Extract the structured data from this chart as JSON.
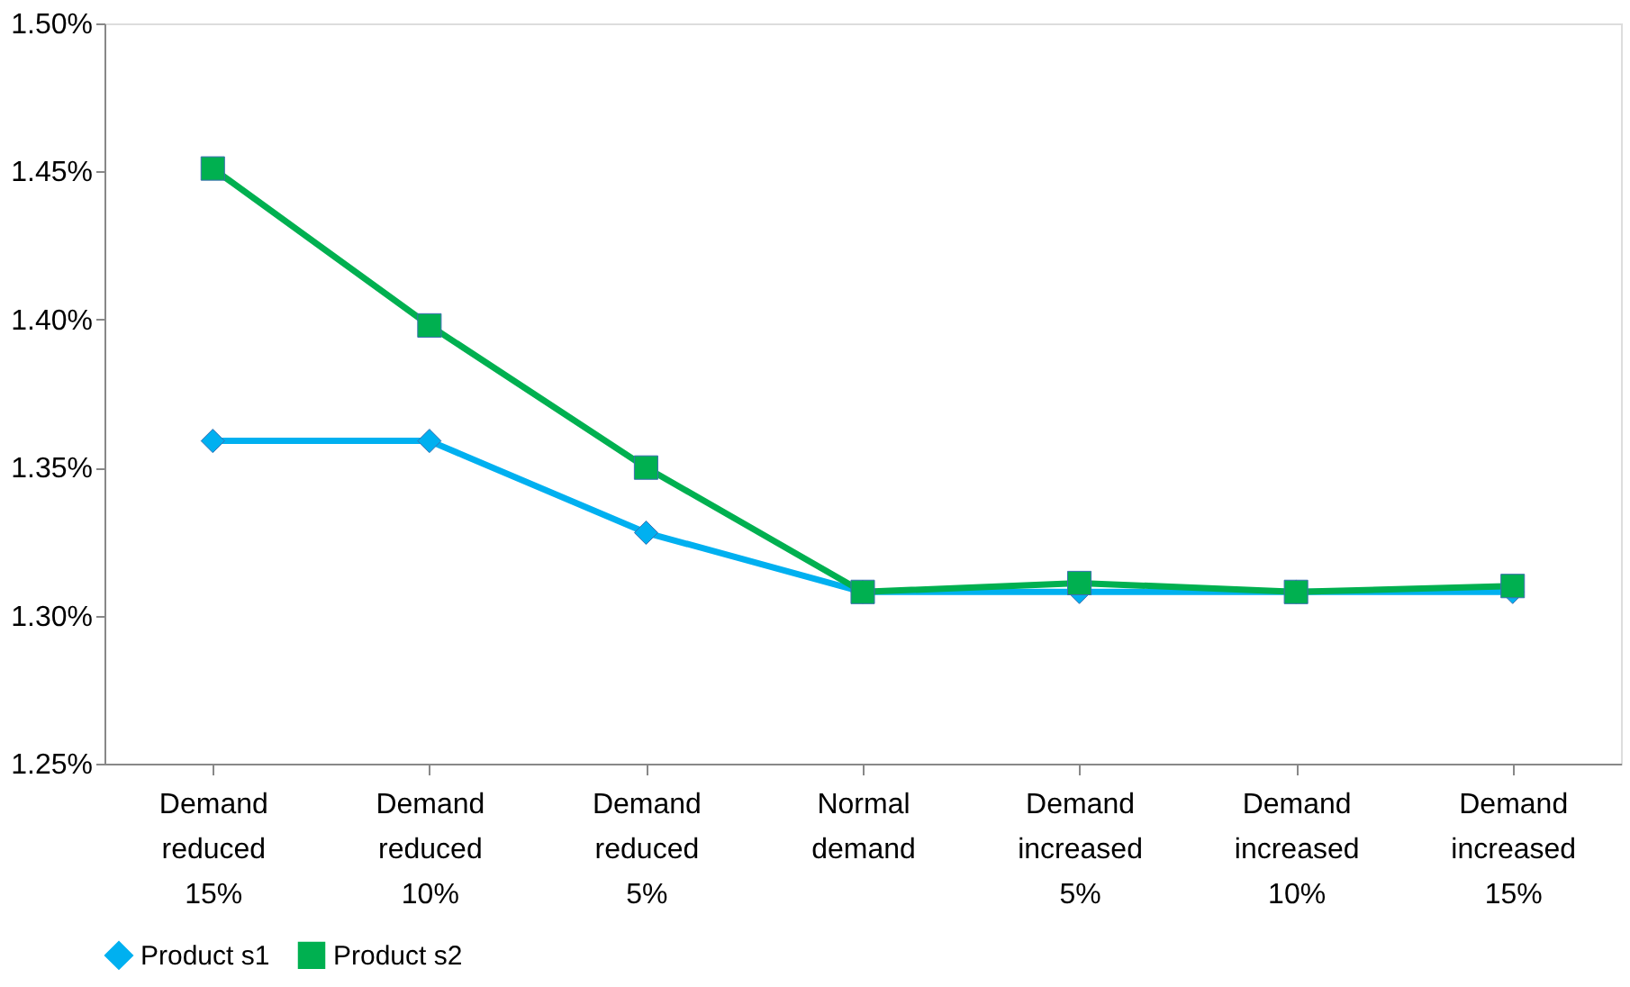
{
  "chart_data": {
    "type": "line",
    "categories": [
      "Demand reduced 15%",
      "Demand reduced 10%",
      "Demand reduced 5%",
      "Normal demand",
      "Demand increased 5%",
      "Demand increased 10%",
      "Demand increased 15%"
    ],
    "series": [
      {
        "name": "Product s1",
        "color": "#00b0f0",
        "marker": "diamond",
        "values": [
          1.359,
          1.359,
          1.328,
          1.308,
          1.308,
          1.308,
          1.308
        ]
      },
      {
        "name": "Product s2",
        "color": "#00b050",
        "marker": "square",
        "values": [
          1.451,
          1.398,
          1.35,
          1.308,
          1.311,
          1.308,
          1.31
        ]
      }
    ],
    "ylim": [
      1.25,
      1.5
    ],
    "yticks": [
      {
        "value": 1.25,
        "label": "1.25%"
      },
      {
        "value": 1.3,
        "label": "1.30%"
      },
      {
        "value": 1.35,
        "label": "1.35%"
      },
      {
        "value": 1.4,
        "label": "1.40%"
      },
      {
        "value": 1.45,
        "label": "1.45%"
      },
      {
        "value": 1.5,
        "label": "1.50%"
      }
    ],
    "grid": false,
    "legend": "bottom",
    "line_style": "solid"
  }
}
